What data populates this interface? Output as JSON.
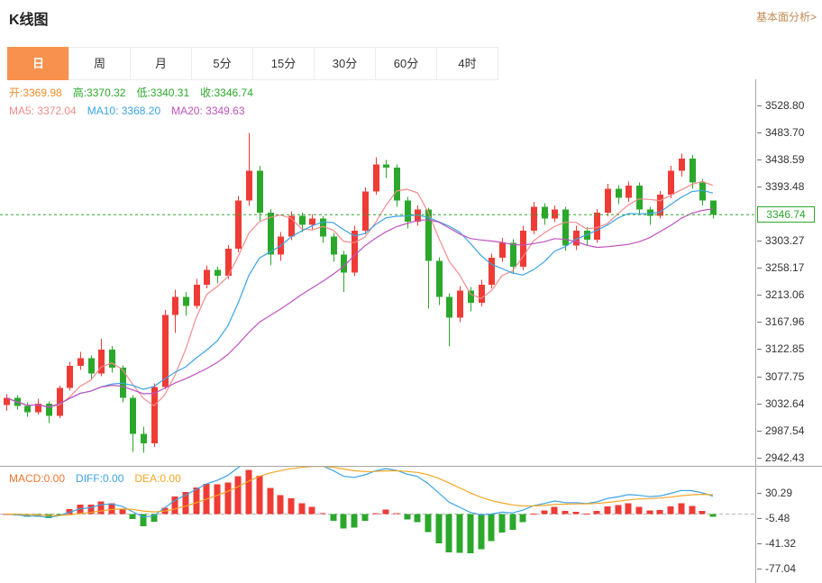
{
  "header": {
    "title": "K线图",
    "link_label": "基本面分析>"
  },
  "tabs": [
    {
      "key": "day",
      "label": "日",
      "active": true
    },
    {
      "key": "week",
      "label": "周",
      "active": false
    },
    {
      "key": "month",
      "label": "月",
      "active": false
    },
    {
      "key": "5min",
      "label": "5分",
      "active": false
    },
    {
      "key": "15min",
      "label": "15分",
      "active": false
    },
    {
      "key": "30min",
      "label": "30分",
      "active": false
    },
    {
      "key": "60min",
      "label": "60分",
      "active": false
    },
    {
      "key": "4hour",
      "label": "4时",
      "active": false
    }
  ],
  "indicators": {
    "ohlc": [
      {
        "text": "开:3369.98",
        "color": "#f18c2a"
      },
      {
        "text": "高:3370.32",
        "color": "#2ba82b"
      },
      {
        "text": "低:3340.31",
        "color": "#2ba82b"
      },
      {
        "text": "收:3346.74",
        "color": "#2ba82b"
      }
    ],
    "ma": [
      {
        "text": "MA5: 3372.04",
        "color": "#f28b8b"
      },
      {
        "text": "MA10: 3368.20",
        "color": "#3aa3e6"
      },
      {
        "text": "MA20: 3349.63",
        "color": "#bf52bf"
      }
    ],
    "macd": [
      {
        "text": "MACD:0.00",
        "color": "#f0762e"
      },
      {
        "text": "DIFF:0.00",
        "color": "#3aa3e6"
      },
      {
        "text": "DEA:0.00",
        "color": "#f5a623"
      }
    ]
  },
  "colors": {
    "up": "#ef3b36",
    "down": "#2ba82b",
    "ma5": "#f28b8b",
    "ma10": "#3aa3e6",
    "ma20": "#bf52bf",
    "dif": "#3aa3e6",
    "dea": "#f5a623",
    "active_tab": "#f8914e",
    "price_line": "#2ba82b",
    "axis_text": "#333333",
    "border": "#a6a6a6"
  },
  "axis": {
    "main_labels": [
      "3528.80",
      "3483.70",
      "3438.59",
      "3393.48",
      "3303.27",
      "3258.17",
      "3213.06",
      "3167.96",
      "3122.85",
      "3077.75",
      "3032.64",
      "2987.54",
      "2942.43"
    ],
    "price_tag": "3346.74",
    "macd_labels": [
      "30.29",
      "-5.48",
      "-41.32",
      "-77.04"
    ]
  },
  "chart_data": {
    "type": "candlestick",
    "title": "K线图 (日K)",
    "period": "日",
    "last": {
      "open": 3369.98,
      "high": 3370.32,
      "low": 3340.31,
      "close": 3346.74
    },
    "ma_values": {
      "MA5": 3372.04,
      "MA10": 3368.2,
      "MA20": 3349.63
    },
    "macd_values": {
      "MACD": 0.0,
      "DIFF": 0.0,
      "DEA": 0.0
    },
    "y_range": [
      2927,
      3572
    ],
    "macd_y_range": [
      -97.5,
      67.0
    ],
    "sub_chart": {
      "type": "macd",
      "tick_labels": [
        30.29,
        -5.48,
        -41.32,
        -77.04
      ]
    },
    "candles": [
      [
        3030,
        3048,
        3020,
        3042
      ],
      [
        3042,
        3046,
        3022,
        3028
      ],
      [
        3028,
        3034,
        3010,
        3018
      ],
      [
        3018,
        3040,
        3014,
        3032
      ],
      [
        3032,
        3036,
        3000,
        3012
      ],
      [
        3012,
        3062,
        3008,
        3058
      ],
      [
        3058,
        3102,
        3054,
        3095
      ],
      [
        3095,
        3118,
        3088,
        3108
      ],
      [
        3108,
        3112,
        3072,
        3082
      ],
      [
        3082,
        3140,
        3078,
        3122
      ],
      [
        3122,
        3128,
        3084,
        3092
      ],
      [
        3092,
        3096,
        3034,
        3042
      ],
      [
        3042,
        3046,
        2952,
        2982
      ],
      [
        2982,
        2994,
        2950,
        2966
      ],
      [
        2966,
        3066,
        2960,
        3060
      ],
      [
        3060,
        3188,
        3056,
        3180
      ],
      [
        3180,
        3222,
        3150,
        3210
      ],
      [
        3210,
        3218,
        3178,
        3195
      ],
      [
        3195,
        3240,
        3190,
        3230
      ],
      [
        3230,
        3262,
        3224,
        3255
      ],
      [
        3255,
        3260,
        3232,
        3245
      ],
      [
        3245,
        3296,
        3240,
        3290
      ],
      [
        3290,
        3378,
        3284,
        3370
      ],
      [
        3370,
        3483,
        3362,
        3420
      ],
      [
        3420,
        3428,
        3336,
        3350
      ],
      [
        3350,
        3356,
        3262,
        3280
      ],
      [
        3280,
        3318,
        3270,
        3310
      ],
      [
        3310,
        3352,
        3304,
        3345
      ],
      [
        3345,
        3350,
        3318,
        3330
      ],
      [
        3330,
        3348,
        3322,
        3340
      ],
      [
        3340,
        3344,
        3300,
        3310
      ],
      [
        3310,
        3316,
        3268,
        3280
      ],
      [
        3280,
        3286,
        3218,
        3250
      ],
      [
        3250,
        3328,
        3244,
        3320
      ],
      [
        3320,
        3392,
        3314,
        3385
      ],
      [
        3385,
        3442,
        3380,
        3430
      ],
      [
        3430,
        3438,
        3408,
        3425
      ],
      [
        3425,
        3430,
        3360,
        3370
      ],
      [
        3370,
        3376,
        3324,
        3335
      ],
      [
        3335,
        3362,
        3328,
        3355
      ],
      [
        3355,
        3358,
        3190,
        3270
      ],
      [
        3270,
        3276,
        3196,
        3210
      ],
      [
        3210,
        3216,
        3128,
        3175
      ],
      [
        3175,
        3228,
        3168,
        3220
      ],
      [
        3220,
        3226,
        3186,
        3200
      ],
      [
        3200,
        3238,
        3194,
        3230
      ],
      [
        3230,
        3282,
        3224,
        3275
      ],
      [
        3275,
        3308,
        3268,
        3300
      ],
      [
        3300,
        3306,
        3248,
        3260
      ],
      [
        3260,
        3328,
        3254,
        3320
      ],
      [
        3320,
        3368,
        3314,
        3360
      ],
      [
        3360,
        3366,
        3330,
        3340
      ],
      [
        3340,
        3362,
        3334,
        3355
      ],
      [
        3355,
        3360,
        3286,
        3295
      ],
      [
        3295,
        3328,
        3288,
        3320
      ],
      [
        3320,
        3326,
        3296,
        3305
      ],
      [
        3305,
        3356,
        3300,
        3350
      ],
      [
        3350,
        3398,
        3344,
        3390
      ],
      [
        3390,
        3396,
        3364,
        3375
      ],
      [
        3375,
        3402,
        3368,
        3395
      ],
      [
        3395,
        3400,
        3346,
        3355
      ],
      [
        3355,
        3360,
        3330,
        3345
      ],
      [
        3345,
        3386,
        3340,
        3380
      ],
      [
        3380,
        3428,
        3374,
        3420
      ],
      [
        3420,
        3448,
        3410,
        3440
      ],
      [
        3440,
        3446,
        3390,
        3400
      ],
      [
        3400,
        3406,
        3362,
        3370
      ],
      [
        3369.98,
        3370.32,
        3340.31,
        3346.74
      ]
    ]
  }
}
